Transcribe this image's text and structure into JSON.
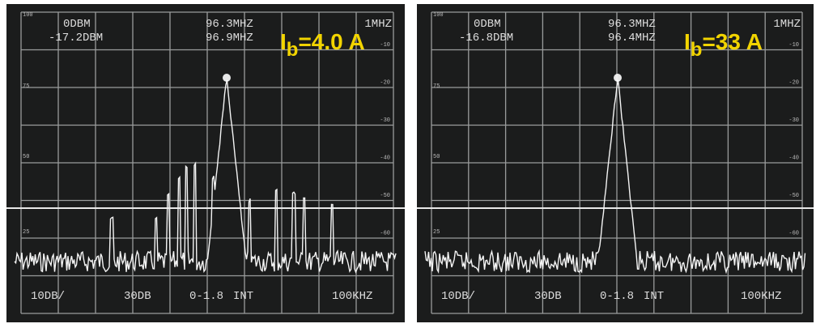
{
  "panels": [
    {
      "reference_level": "0DBM",
      "marker_level": "-17.2DBM",
      "center_frequency": "96.3MHZ",
      "marker_frequency": "96.9MHZ",
      "span": "1MHZ",
      "current_label": {
        "symbol": "I",
        "subscript": "b",
        "value": "=4.0 A"
      },
      "left_scale": [
        "100",
        "75",
        "50",
        "25"
      ],
      "right_scale": [
        "-10",
        "-20",
        "-30",
        "-40",
        "-50",
        "-60"
      ],
      "bottom": [
        "10DB/",
        "30DB",
        "0-1.8",
        "INT",
        "100KHZ"
      ]
    },
    {
      "reference_level": "0DBM",
      "marker_level": "-16.8DBM",
      "center_frequency": "96.3MHZ",
      "marker_frequency": "96.4MHZ",
      "span": "1MHZ",
      "current_label": {
        "symbol": "I",
        "subscript": "b",
        "value": "=33 A"
      },
      "left_scale": [
        "100",
        "75",
        "50",
        "25"
      ],
      "right_scale": [
        "-10",
        "-20",
        "-30",
        "-40",
        "-50",
        "-60"
      ],
      "bottom": [
        "10DB/",
        "30DB",
        "0-1.8",
        "INT",
        "100KHZ"
      ]
    }
  ]
}
